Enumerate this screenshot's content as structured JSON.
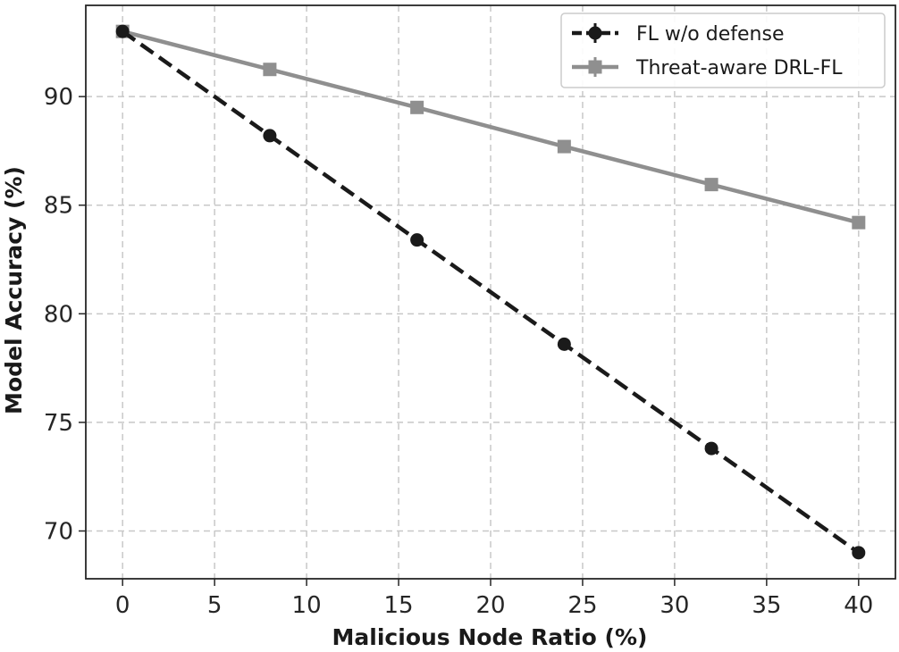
{
  "chart_data": {
    "type": "line",
    "title": "",
    "xlabel": "Malicious Node Ratio (%)",
    "ylabel": "Model Accuracy (%)",
    "xlim": [
      -2,
      42
    ],
    "ylim": [
      67.8,
      94.2
    ],
    "xticks": [
      0,
      5,
      10,
      15,
      20,
      25,
      30,
      35,
      40
    ],
    "yticks": [
      70,
      75,
      80,
      85,
      90
    ],
    "grid": true,
    "legend_position": "top-right",
    "x": [
      0,
      8,
      16,
      24,
      32,
      40
    ],
    "series": [
      {
        "name": "FL w/o defense",
        "values": [
          93.0,
          88.2,
          83.4,
          78.6,
          73.8,
          69.0
        ],
        "color": "#1a1a1a",
        "line_style": "dashed",
        "marker": "circle"
      },
      {
        "name": "Threat-aware DRL-FL",
        "values": [
          93.0,
          91.25,
          89.5,
          87.7,
          85.95,
          84.2
        ],
        "color": "#8f8f8f",
        "line_style": "solid",
        "marker": "square"
      }
    ]
  }
}
